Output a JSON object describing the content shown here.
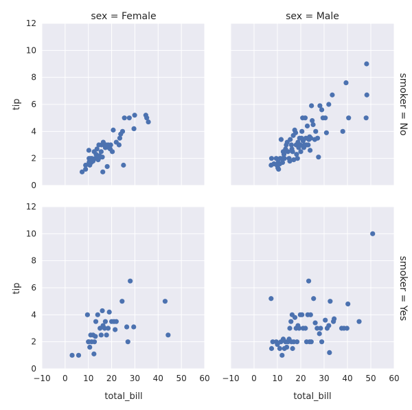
{
  "chart_data": {
    "type": "scatter",
    "x_label": "total_bill",
    "y_label": "tip",
    "col_titles": [
      "sex = Female",
      "sex = Male"
    ],
    "row_titles": [
      "smoker = No",
      "smoker = Yes"
    ],
    "xlim": [
      -10,
      60
    ],
    "ylim": [
      0,
      12
    ],
    "x_ticks": [
      "−10",
      "0",
      "10",
      "20",
      "30",
      "40",
      "50",
      "60"
    ],
    "y_ticks": [
      "0",
      "2",
      "4",
      "6",
      "8",
      "10",
      "12"
    ],
    "grid": true,
    "color": "#4c72b0",
    "background": "#eaeaf2",
    "panels": [
      {
        "row": 0,
        "col": 0,
        "points": [
          [
            7.3,
            1.0
          ],
          [
            8.8,
            1.2
          ],
          [
            8.8,
            1.5
          ],
          [
            10.3,
            1.7
          ],
          [
            10.3,
            2.0
          ],
          [
            10.5,
            1.8
          ],
          [
            10.6,
            1.5
          ],
          [
            11.2,
            1.7
          ],
          [
            11.0,
            2.0
          ],
          [
            12.0,
            1.8
          ],
          [
            10.2,
            2.6
          ],
          [
            11.5,
            2.0
          ],
          [
            12.5,
            2.5
          ],
          [
            13.0,
            2.0
          ],
          [
            13.3,
            2.3
          ],
          [
            13.7,
            2.7
          ],
          [
            14.2,
            1.9
          ],
          [
            14.4,
            2.0
          ],
          [
            14.5,
            3.0
          ],
          [
            14.8,
            2.2
          ],
          [
            15.2,
            2.1
          ],
          [
            15.5,
            2.5
          ],
          [
            15.7,
            3.0
          ],
          [
            16.0,
            2.1
          ],
          [
            16.2,
            1.0
          ],
          [
            16.4,
            3.2
          ],
          [
            16.9,
            3.0
          ],
          [
            17.3,
            2.8
          ],
          [
            17.6,
            3.0
          ],
          [
            17.8,
            2.9
          ],
          [
            18.1,
            1.4
          ],
          [
            18.5,
            3.0
          ],
          [
            18.8,
            2.8
          ],
          [
            19.4,
            2.7
          ],
          [
            19.6,
            3.0
          ],
          [
            20.3,
            2.5
          ],
          [
            20.7,
            4.1
          ],
          [
            22.0,
            3.2
          ],
          [
            23.2,
            3.0
          ],
          [
            23.5,
            3.5
          ],
          [
            23.9,
            3.8
          ],
          [
            24.7,
            4.0
          ],
          [
            25.1,
            1.5
          ],
          [
            25.5,
            5.0
          ],
          [
            27.6,
            5.0
          ],
          [
            29.6,
            4.2
          ],
          [
            29.9,
            5.2
          ],
          [
            34.7,
            5.2
          ],
          [
            35.1,
            5.0
          ],
          [
            35.8,
            4.7
          ]
        ]
      },
      {
        "row": 0,
        "col": 1,
        "points": [
          [
            7.3,
            1.5
          ],
          [
            7.5,
            2.0
          ],
          [
            8.5,
            1.6
          ],
          [
            9.5,
            2.0
          ],
          [
            9.8,
            1.5
          ],
          [
            10.2,
            1.3
          ],
          [
            10.3,
            1.7
          ],
          [
            10.5,
            1.2
          ],
          [
            11.0,
            1.6
          ],
          [
            11.2,
            2.0
          ],
          [
            11.6,
            3.4
          ],
          [
            12.2,
            1.7
          ],
          [
            12.3,
            2.0
          ],
          [
            12.5,
            2.5
          ],
          [
            12.8,
            2.3
          ],
          [
            13.0,
            2.0
          ],
          [
            13.5,
            2.7
          ],
          [
            13.8,
            3.0
          ],
          [
            14.2,
            3.2
          ],
          [
            14.5,
            2.5
          ],
          [
            15.0,
            2.0
          ],
          [
            15.3,
            1.8
          ],
          [
            15.5,
            3.4
          ],
          [
            16.0,
            3.0
          ],
          [
            16.2,
            2.7
          ],
          [
            16.5,
            2.5
          ],
          [
            16.8,
            3.7
          ],
          [
            17.0,
            1.9
          ],
          [
            17.4,
            4.1
          ],
          [
            17.8,
            3.9
          ],
          [
            18.0,
            3.0
          ],
          [
            18.2,
            2.3
          ],
          [
            18.6,
            2.0
          ],
          [
            18.8,
            3.2
          ],
          [
            19.1,
            2.8
          ],
          [
            19.5,
            3.5
          ],
          [
            19.8,
            3.0
          ],
          [
            20.0,
            2.5
          ],
          [
            20.3,
            3.5
          ],
          [
            20.5,
            4.0
          ],
          [
            20.8,
            5.0
          ],
          [
            21.0,
            3.3
          ],
          [
            21.3,
            2.8
          ],
          [
            21.6,
            3.0
          ],
          [
            21.9,
            5.0
          ],
          [
            22.2,
            3.5
          ],
          [
            22.5,
            3.0
          ],
          [
            22.8,
            4.4
          ],
          [
            23.2,
            3.0
          ],
          [
            23.5,
            3.4
          ],
          [
            23.8,
            3.6
          ],
          [
            24.0,
            2.6
          ],
          [
            24.3,
            3.5
          ],
          [
            24.6,
            5.9
          ],
          [
            24.9,
            4.8
          ],
          [
            25.3,
            4.5
          ],
          [
            26.0,
            3.4
          ],
          [
            26.4,
            4.0
          ],
          [
            27.2,
            3.5
          ],
          [
            27.6,
            2.1
          ],
          [
            28.2,
            5.9
          ],
          [
            29.0,
            5.6
          ],
          [
            29.5,
            5.0
          ],
          [
            30.5,
            5.0
          ],
          [
            31.0,
            3.9
          ],
          [
            32.0,
            6.0
          ],
          [
            33.5,
            6.7
          ],
          [
            38.0,
            4.0
          ],
          [
            39.4,
            7.6
          ],
          [
            40.5,
            5.0
          ],
          [
            48.2,
            9.0
          ],
          [
            48.3,
            6.7
          ],
          [
            48.0,
            5.0
          ]
        ]
      },
      {
        "row": 1,
        "col": 0,
        "points": [
          [
            3.0,
            1.0
          ],
          [
            5.8,
            1.0
          ],
          [
            9.6,
            4.0
          ],
          [
            10.0,
            2.0
          ],
          [
            10.2,
            2.0
          ],
          [
            10.6,
            1.6
          ],
          [
            11.0,
            2.5
          ],
          [
            11.4,
            2.0
          ],
          [
            12.0,
            2.5
          ],
          [
            12.4,
            1.1
          ],
          [
            12.6,
            2.0
          ],
          [
            13.0,
            2.4
          ],
          [
            13.2,
            3.5
          ],
          [
            14.0,
            4.0
          ],
          [
            15.0,
            3.0
          ],
          [
            15.5,
            2.5
          ],
          [
            16.0,
            4.3
          ],
          [
            16.3,
            3.2
          ],
          [
            17.0,
            3.0
          ],
          [
            17.3,
            3.5
          ],
          [
            17.8,
            2.5
          ],
          [
            18.5,
            3.0
          ],
          [
            19.0,
            4.2
          ],
          [
            20.0,
            3.5
          ],
          [
            21.0,
            3.5
          ],
          [
            21.5,
            2.9
          ],
          [
            22.0,
            3.5
          ],
          [
            24.5,
            5.0
          ],
          [
            26.5,
            3.1
          ],
          [
            27.0,
            2.0
          ],
          [
            28.0,
            6.5
          ],
          [
            29.5,
            3.1
          ],
          [
            43.0,
            5.0
          ],
          [
            44.3,
            2.5
          ]
        ]
      },
      {
        "row": 1,
        "col": 1,
        "points": [
          [
            7.3,
            5.2
          ],
          [
            7.5,
            1.5
          ],
          [
            8.0,
            2.0
          ],
          [
            9.5,
            2.0
          ],
          [
            10.0,
            1.8
          ],
          [
            11.0,
            1.5
          ],
          [
            11.5,
            2.0
          ],
          [
            12.0,
            1.0
          ],
          [
            12.5,
            2.2
          ],
          [
            13.0,
            1.5
          ],
          [
            13.5,
            2.0
          ],
          [
            14.0,
            1.6
          ],
          [
            14.5,
            2.0
          ],
          [
            15.0,
            2.2
          ],
          [
            15.3,
            3.0
          ],
          [
            15.8,
            3.5
          ],
          [
            16.0,
            2.0
          ],
          [
            16.3,
            4.0
          ],
          [
            16.5,
            1.5
          ],
          [
            17.0,
            2.0
          ],
          [
            17.5,
            3.8
          ],
          [
            18.0,
            3.0
          ],
          [
            18.4,
            2.0
          ],
          [
            18.8,
            3.2
          ],
          [
            19.3,
            3.0
          ],
          [
            19.8,
            4.0
          ],
          [
            20.5,
            4.0
          ],
          [
            21.0,
            3.0
          ],
          [
            22.0,
            3.0
          ],
          [
            22.5,
            2.0
          ],
          [
            23.0,
            4.0
          ],
          [
            23.4,
            6.5
          ],
          [
            23.8,
            2.0
          ],
          [
            24.2,
            4.0
          ],
          [
            24.5,
            2.0
          ],
          [
            25.5,
            5.2
          ],
          [
            26.2,
            3.4
          ],
          [
            27.0,
            3.0
          ],
          [
            28.0,
            2.6
          ],
          [
            28.5,
            3.0
          ],
          [
            29.0,
            2.0
          ],
          [
            30.5,
            3.6
          ],
          [
            31.3,
            3.0
          ],
          [
            32.0,
            3.2
          ],
          [
            32.3,
            1.2
          ],
          [
            32.6,
            5.0
          ],
          [
            34.0,
            3.5
          ],
          [
            34.3,
            3.7
          ],
          [
            37.5,
            3.0
          ],
          [
            38.5,
            3.0
          ],
          [
            39.8,
            3.0
          ],
          [
            40.2,
            4.8
          ],
          [
            45.0,
            3.5
          ],
          [
            50.8,
            10.0
          ]
        ]
      }
    ]
  }
}
